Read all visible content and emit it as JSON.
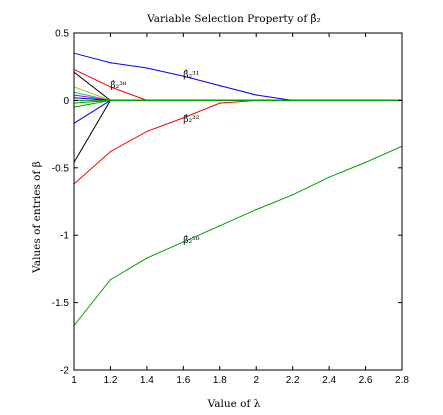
{
  "chart_data": {
    "type": "line",
    "title": "Variable Selection Property of β̂₂",
    "xlabel": "Value of λ",
    "ylabel": "Values of entries of β",
    "xlim": [
      1,
      2.8
    ],
    "ylim": [
      -2,
      0.5
    ],
    "xticks": [
      "1",
      "1.2",
      "1.4",
      "1.6",
      "1.8",
      "2",
      "2.2",
      "2.4",
      "2.6",
      "2.8"
    ],
    "yticks": [
      "0.5",
      "0",
      "-0.5",
      "-1",
      "-1.5",
      "-2"
    ],
    "ytick_values": [
      0.5,
      0,
      -0.5,
      -1,
      -1.5,
      -2
    ],
    "x": [
      1,
      1.2,
      1.4,
      1.6,
      1.8,
      2,
      2.2,
      2.4,
      2.6,
      2.8
    ],
    "grid": false,
    "legend": "none",
    "series": [
      {
        "color": "#0000ff",
        "values": [
          0.35,
          0.28,
          0.24,
          0.18,
          0.11,
          0.04,
          0.0,
          0.0,
          0.0,
          0.0
        ]
      },
      {
        "color": "#ff0000",
        "values": [
          0.23,
          0.1,
          0.0,
          0.0,
          0.0,
          0.0,
          0.0,
          0.0,
          0.0,
          0.0
        ]
      },
      {
        "color": "#ff0000",
        "values": [
          -0.62,
          -0.38,
          -0.23,
          -0.13,
          -0.02,
          0.0,
          0.0,
          0.0,
          0.0,
          0.0
        ]
      },
      {
        "color": "#00a000",
        "values": [
          -1.67,
          -1.33,
          -1.17,
          -1.05,
          -0.93,
          -0.81,
          -0.7,
          -0.57,
          -0.46,
          -0.34
        ]
      },
      {
        "color": "#000000",
        "values": [
          0.21,
          0.0,
          0.0,
          0.0,
          0.0,
          0.0,
          0.0,
          0.0,
          0.0,
          0.0
        ]
      },
      {
        "color": "#000000",
        "values": [
          -0.46,
          0.0,
          0.0,
          0.0,
          0.0,
          0.0,
          0.0,
          0.0,
          0.0,
          0.0
        ]
      },
      {
        "color": "#0000ff",
        "values": [
          -0.17,
          0.0,
          0.0,
          0.0,
          0.0,
          0.0,
          0.0,
          0.0,
          0.0,
          0.0
        ]
      },
      {
        "color": "#00bfbf",
        "values": [
          0.06,
          0.0,
          0.0,
          0.0,
          0.0,
          0.0,
          0.0,
          0.0,
          0.0,
          0.0
        ]
      },
      {
        "color": "#bfbf00",
        "values": [
          0.1,
          0.0,
          0.0,
          0.0,
          0.0,
          0.0,
          0.0,
          0.0,
          0.0,
          0.0
        ]
      },
      {
        "color": "#bf00bf",
        "values": [
          0.04,
          0.0,
          0.0,
          0.0,
          0.0,
          0.0,
          0.0,
          0.0,
          0.0,
          0.0
        ]
      },
      {
        "color": "#0000ff",
        "values": [
          0.02,
          0.0,
          0.0,
          0.0,
          0.0,
          0.0,
          0.0,
          0.0,
          0.0,
          0.0
        ]
      },
      {
        "color": "#00a000",
        "values": [
          -0.02,
          0.0,
          0.0,
          0.0,
          0.0,
          0.0,
          0.0,
          0.0,
          0.0,
          0.0
        ]
      },
      {
        "color": "#00a000",
        "values": [
          -0.05,
          0.0,
          0.0,
          0.0,
          0.0,
          0.0,
          0.0,
          0.0,
          0.0,
          0.0
        ]
      },
      {
        "color": "#00a000",
        "values": [
          0.0,
          0.0,
          0.0,
          0.0,
          0.0,
          0.0,
          0.0,
          0.0,
          0.0,
          0.0
        ]
      }
    ],
    "annotations": [
      {
        "text": "β̂₂³⁸",
        "x": 1.2,
        "y": 0.11
      },
      {
        "text": "β̂₂³¹",
        "x": 1.6,
        "y": 0.19
      },
      {
        "text": "β̂₂³²",
        "x": 1.6,
        "y": -0.14
      },
      {
        "text": "β̂₂⁵⁰",
        "x": 1.6,
        "y": -1.04
      }
    ]
  }
}
